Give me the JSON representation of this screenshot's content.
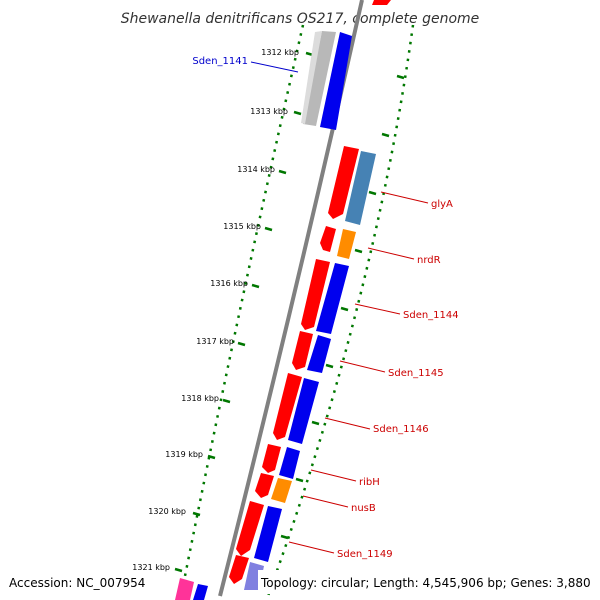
{
  "title": "Shewanella denitrificans OS217, complete genome",
  "footer": {
    "accession": "Accession: NC_007954",
    "topology": "Topology: circular; Length: 4,545,906 bp; Genes: 3,880"
  },
  "colors": {
    "forward_gene": "#ff0000",
    "reverse_gene": "#0000ee",
    "grey_gene": "#b8b8b8",
    "orange_gene": "#ff8c00",
    "steelblue_gene": "#4682b4",
    "pink_gene": "#ff3399",
    "lavender_gene": "#8080e0",
    "backbone": "#808080",
    "tick": "#007700",
    "label_red": "#cc0000",
    "label_blue": "#0000cc"
  },
  "ticks": [
    {
      "label": "1312 kbp"
    },
    {
      "label": "1313 kbp"
    },
    {
      "label": "1314 kbp"
    },
    {
      "label": "1315 kbp"
    },
    {
      "label": "1316 kbp"
    },
    {
      "label": "1317 kbp"
    },
    {
      "label": "1318 kbp"
    },
    {
      "label": "1319 kbp"
    },
    {
      "label": "1320 kbp"
    },
    {
      "label": "1321 kbp"
    }
  ],
  "gene_labels": [
    {
      "name": "Sden_1141",
      "color": "#0000cc"
    },
    {
      "name": "glyA",
      "color": "#cc0000"
    },
    {
      "name": "nrdR",
      "color": "#cc0000"
    },
    {
      "name": "Sden_1144",
      "color": "#cc0000"
    },
    {
      "name": "Sden_1145",
      "color": "#cc0000"
    },
    {
      "name": "Sden_1146",
      "color": "#cc0000"
    },
    {
      "name": "ribH",
      "color": "#cc0000"
    },
    {
      "name": "nusB",
      "color": "#cc0000"
    },
    {
      "name": "Sden_1149",
      "color": "#cc0000"
    }
  ]
}
